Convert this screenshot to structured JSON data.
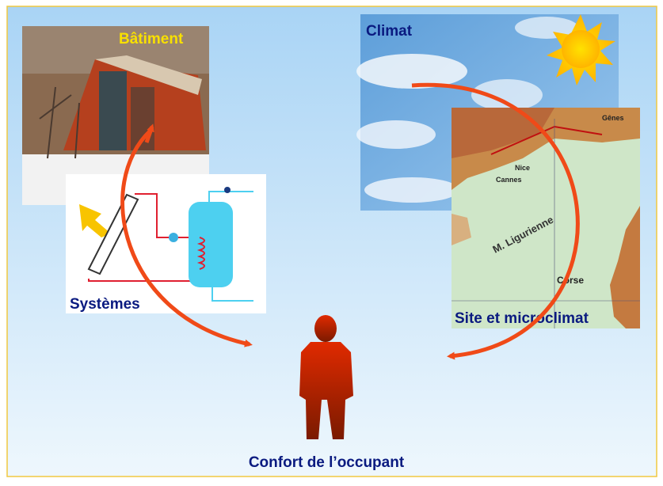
{
  "labels": {
    "building": "Bâtiment",
    "climate": "Climat",
    "systems": "Systèmes",
    "site": "Site et microclimat",
    "occupant": "Confort de l’occupant"
  },
  "map_labels": [
    "Gênes",
    "Nice",
    "Cannes",
    "M. Ligurienne",
    "Corse"
  ]
}
